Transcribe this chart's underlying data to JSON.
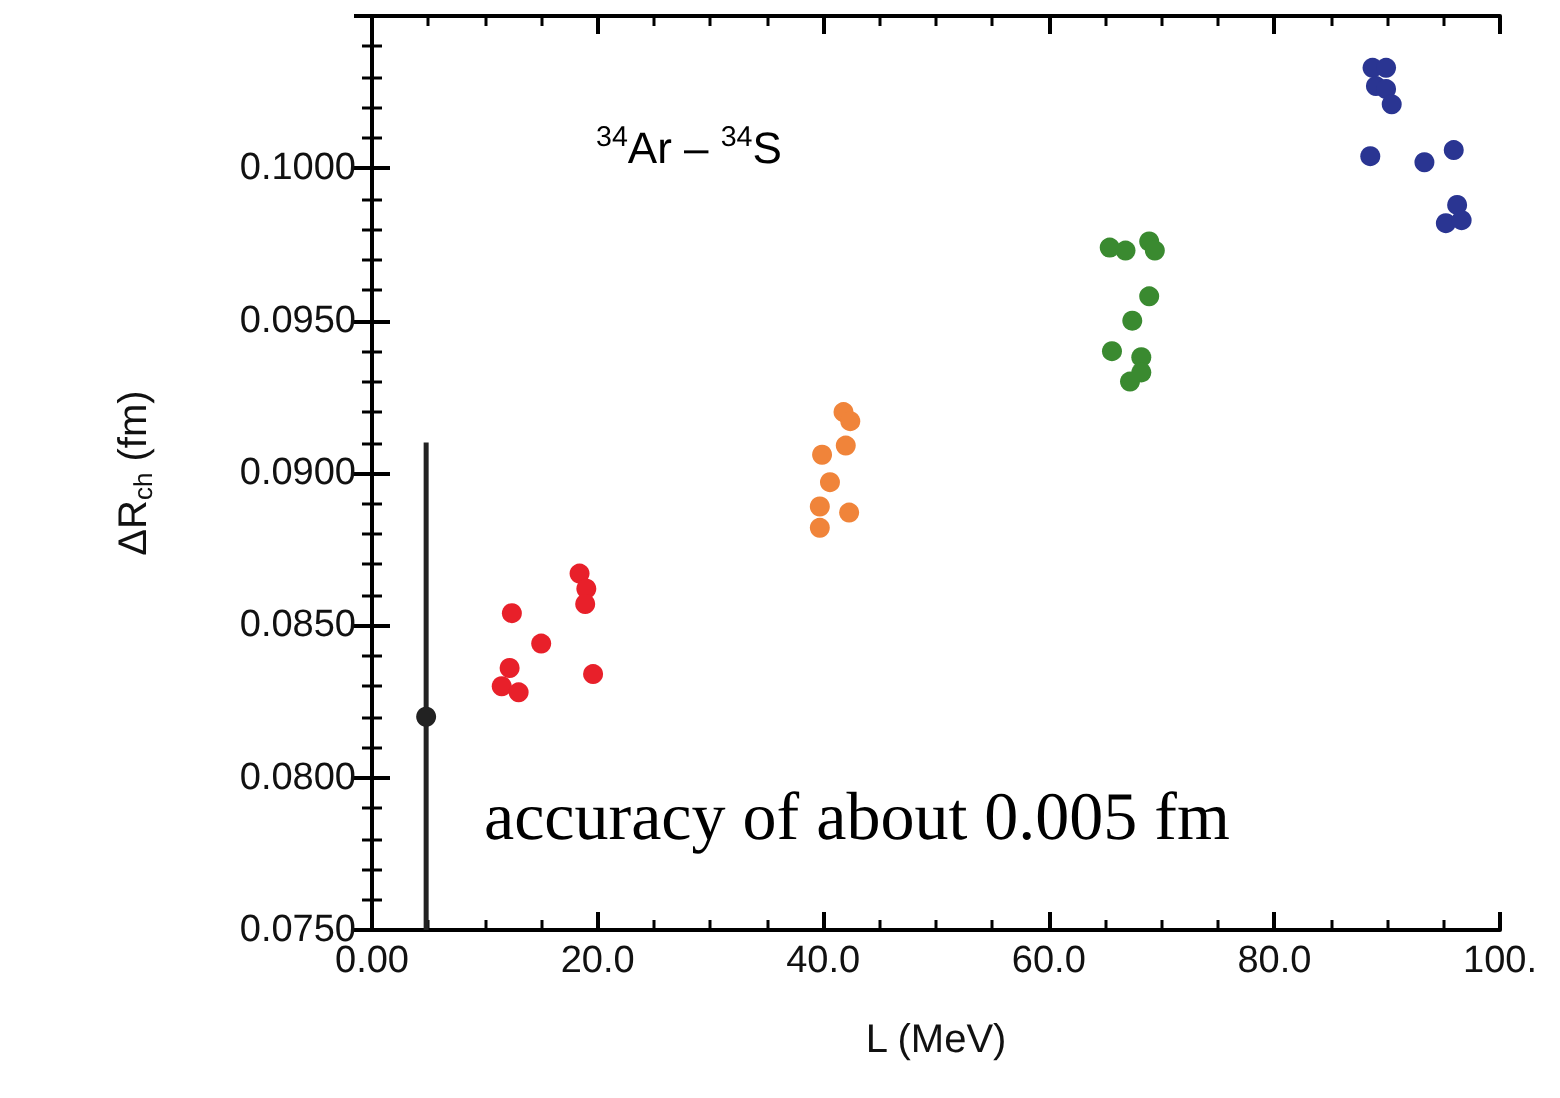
{
  "chart_data": {
    "type": "scatter",
    "xlabel": "L (MeV)",
    "ylabel": "ΔR$_{ch}$ (fm)",
    "annotations": [
      "$^{34}$Ar – $^{34}$S",
      "accuracy of about 0.005 fm"
    ],
    "xlim": [
      0,
      100
    ],
    "ylim": [
      0.075,
      0.105
    ],
    "xticks": [
      {
        "value": 0,
        "label": "0.00"
      },
      {
        "value": 20,
        "label": "20.0"
      },
      {
        "value": 40,
        "label": "40.0"
      },
      {
        "value": 60,
        "label": "60.0"
      },
      {
        "value": 80,
        "label": "80.0"
      },
      {
        "value": 100,
        "label": "100."
      }
    ],
    "yticks": [
      {
        "value": 0.075,
        "label": "0.0750"
      },
      {
        "value": 0.08,
        "label": "0.0800"
      },
      {
        "value": 0.085,
        "label": "0.0850"
      },
      {
        "value": 0.09,
        "label": "0.0900"
      },
      {
        "value": 0.095,
        "label": "0.0950"
      },
      {
        "value": 0.1,
        "label": "0.1000"
      },
      {
        "value": 0.105,
        "label": null
      }
    ],
    "grid": false,
    "marker": "circle",
    "series": [
      {
        "color": "#222222",
        "x": [
          4.8
        ],
        "values": [
          0.082
        ],
        "errors": [
          [
            0.075,
            0.091
          ]
        ]
      },
      {
        "color": "#e8202a",
        "x": [
          12.4,
          15.0,
          12.2,
          11.5,
          13.0,
          18.4,
          19.0,
          18.9,
          19.6
        ],
        "values": [
          0.0854,
          0.0844,
          0.0836,
          0.083,
          0.0828,
          0.0867,
          0.0862,
          0.0857,
          0.0834
        ]
      },
      {
        "color": "#f0843a",
        "x": [
          41.8,
          42.4,
          42.0,
          39.9,
          40.6,
          39.7,
          39.7,
          42.3
        ],
        "values": [
          0.092,
          0.0917,
          0.0909,
          0.0906,
          0.0897,
          0.0889,
          0.0882,
          0.0887
        ]
      },
      {
        "color": "#3a8a30",
        "x": [
          65.4,
          66.8,
          68.9,
          69.4,
          68.9,
          67.4,
          65.6,
          68.2,
          68.2,
          67.2
        ],
        "values": [
          0.0974,
          0.0973,
          0.0976,
          0.0973,
          0.0958,
          0.095,
          0.094,
          0.0938,
          0.0933,
          0.093
        ]
      },
      {
        "color": "#2a3592",
        "x": [
          88.7,
          89.9,
          89.0,
          89.9,
          90.4,
          88.5,
          93.3,
          95.9,
          96.2,
          95.2,
          96.6
        ],
        "values": [
          0.1033,
          0.1033,
          0.1027,
          0.1026,
          0.1021,
          0.1004,
          0.1002,
          0.1006,
          0.0988,
          0.0982,
          0.0983
        ]
      }
    ]
  }
}
